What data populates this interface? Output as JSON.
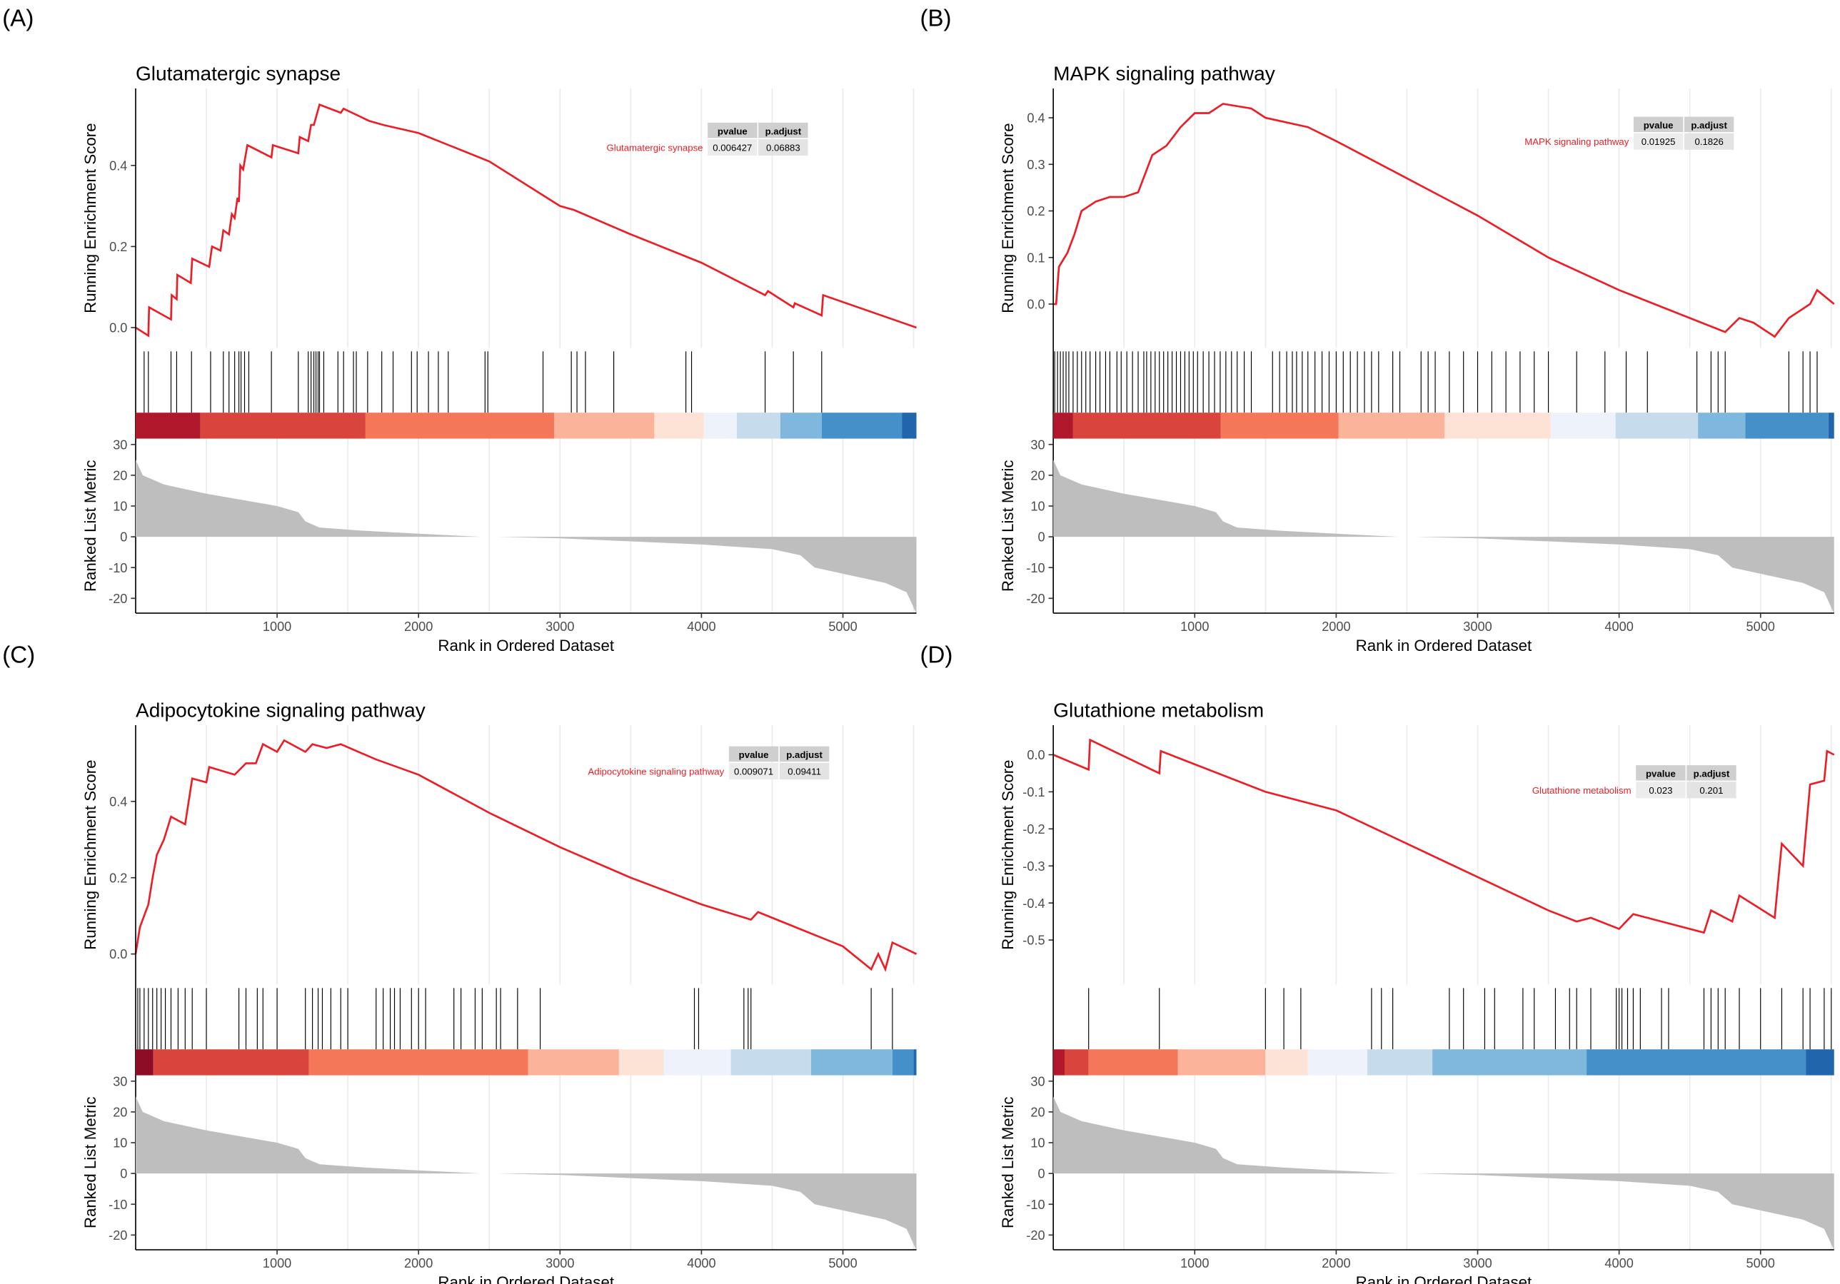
{
  "chart_data": [
    {
      "panel": "(A)",
      "type": "line",
      "title": "Glutamatergic synapse",
      "term": "Glutamatergic synapse",
      "pvalue": "0.006427",
      "p_adjust": "0.06883",
      "ylabel": "Running Enrichment Score",
      "ylim": [
        -0.05,
        0.59
      ],
      "yticks": [
        "0.0",
        "0.2",
        "0.4"
      ],
      "ytick_values": [
        0,
        0.2,
        0.4
      ],
      "es": [
        [
          0,
          0
        ],
        [
          90,
          -0.02
        ],
        [
          95,
          0.05
        ],
        [
          250,
          0.02
        ],
        [
          255,
          0.08
        ],
        [
          290,
          0.07
        ],
        [
          295,
          0.13
        ],
        [
          390,
          0.11
        ],
        [
          400,
          0.17
        ],
        [
          520,
          0.15
        ],
        [
          540,
          0.2
        ],
        [
          600,
          0.19
        ],
        [
          620,
          0.24
        ],
        [
          660,
          0.23
        ],
        [
          680,
          0.28
        ],
        [
          700,
          0.27
        ],
        [
          720,
          0.32
        ],
        [
          730,
          0.31
        ],
        [
          740,
          0.4
        ],
        [
          760,
          0.39
        ],
        [
          790,
          0.45
        ],
        [
          960,
          0.42
        ],
        [
          970,
          0.45
        ],
        [
          1150,
          0.43
        ],
        [
          1160,
          0.47
        ],
        [
          1220,
          0.46
        ],
        [
          1240,
          0.5
        ],
        [
          1260,
          0.5
        ],
        [
          1300,
          0.55
        ],
        [
          1450,
          0.53
        ],
        [
          1470,
          0.54
        ],
        [
          1650,
          0.51
        ],
        [
          1750,
          0.5
        ],
        [
          2000,
          0.48
        ],
        [
          2500,
          0.41
        ],
        [
          3000,
          0.3
        ],
        [
          3100,
          0.29
        ],
        [
          3500,
          0.23
        ],
        [
          4000,
          0.16
        ],
        [
          4450,
          0.08
        ],
        [
          4470,
          0.09
        ],
        [
          4650,
          0.05
        ],
        [
          4660,
          0.06
        ],
        [
          4850,
          0.03
        ],
        [
          4860,
          0.08
        ],
        [
          5520,
          0.0
        ]
      ],
      "hits": [
        60,
        90,
        250,
        290,
        395,
        530,
        620,
        660,
        700,
        730,
        745,
        770,
        800,
        960,
        1150,
        1220,
        1240,
        1260,
        1275,
        1290,
        1300,
        1330,
        1430,
        1470,
        1540,
        1560,
        1640,
        1740,
        1820,
        1950,
        1990,
        2070,
        2140,
        2210,
        2470,
        2490,
        2880,
        3080,
        3120,
        3180,
        3380,
        3890,
        3930,
        4450,
        4650,
        4850
      ],
      "colorbar": [
        [
          0,
          458,
          "#b2182b"
        ],
        [
          458,
          1625,
          "#d9453c"
        ],
        [
          1625,
          2958,
          "#f4775a"
        ],
        [
          2958,
          3667,
          "#fbb49a"
        ],
        [
          3667,
          4017,
          "#fde3d6"
        ],
        [
          4017,
          4250,
          "#eef2fb"
        ],
        [
          4250,
          4558,
          "#c6dbec"
        ],
        [
          4558,
          4850,
          "#7fb7dd"
        ],
        [
          4850,
          5417,
          "#4690c9"
        ],
        [
          5417,
          5520,
          "#2166ac"
        ]
      ]
    },
    {
      "panel": "(B)",
      "type": "line",
      "title": "MAPK signaling pathway",
      "term": "MAPK signaling pathway",
      "pvalue": "0.01925",
      "p_adjust": "0.1826",
      "ylabel": "Running Enrichment Score",
      "ylim": [
        -0.094,
        0.463
      ],
      "yticks": [
        "0.0",
        "0.1",
        "0.2",
        "0.3",
        "0.4"
      ],
      "ytick_values": [
        0,
        0.1,
        0.2,
        0.3,
        0.4
      ],
      "es": [
        [
          0,
          0
        ],
        [
          20,
          0.0
        ],
        [
          40,
          0.08
        ],
        [
          100,
          0.11
        ],
        [
          150,
          0.15
        ],
        [
          200,
          0.2
        ],
        [
          300,
          0.22
        ],
        [
          400,
          0.23
        ],
        [
          500,
          0.23
        ],
        [
          600,
          0.24
        ],
        [
          650,
          0.28
        ],
        [
          700,
          0.32
        ],
        [
          800,
          0.34
        ],
        [
          900,
          0.38
        ],
        [
          1000,
          0.41
        ],
        [
          1100,
          0.41
        ],
        [
          1200,
          0.43
        ],
        [
          1400,
          0.42
        ],
        [
          1500,
          0.4
        ],
        [
          1800,
          0.38
        ],
        [
          2000,
          0.35
        ],
        [
          2500,
          0.27
        ],
        [
          3000,
          0.19
        ],
        [
          3500,
          0.1
        ],
        [
          4000,
          0.03
        ],
        [
          4500,
          -0.03
        ],
        [
          4750,
          -0.06
        ],
        [
          4850,
          -0.03
        ],
        [
          4950,
          -0.04
        ],
        [
          5100,
          -0.07
        ],
        [
          5200,
          -0.03
        ],
        [
          5350,
          0.0
        ],
        [
          5400,
          0.03
        ],
        [
          5520,
          0.0
        ]
      ],
      "hits": [
        10,
        30,
        50,
        70,
        90,
        110,
        140,
        170,
        200,
        230,
        260,
        300,
        330,
        370,
        400,
        450,
        480,
        520,
        560,
        600,
        640,
        660,
        690,
        720,
        750,
        780,
        810,
        840,
        870,
        900,
        930,
        960,
        990,
        1020,
        1060,
        1100,
        1140,
        1180,
        1220,
        1260,
        1300,
        1350,
        1400,
        1550,
        1600,
        1650,
        1690,
        1720,
        1760,
        1800,
        1850,
        1900,
        1950,
        2000,
        2050,
        2100,
        2150,
        2200,
        2250,
        2300,
        2400,
        2450,
        2600,
        2650,
        2700,
        2800,
        2900,
        3000,
        3100,
        3200,
        3300,
        3400,
        3500,
        3700,
        3900,
        4050,
        4200,
        4550,
        4650,
        4700,
        4750,
        5200,
        5300,
        5350,
        5400
      ],
      "colorbar": [
        [
          0,
          140,
          "#b2182b"
        ],
        [
          140,
          1183,
          "#d9453c"
        ],
        [
          1183,
          2017,
          "#f4775a"
        ],
        [
          2017,
          2767,
          "#fbb49a"
        ],
        [
          2767,
          3517,
          "#fde3d6"
        ],
        [
          3517,
          3975,
          "#eef2fb"
        ],
        [
          3975,
          4558,
          "#c6dbec"
        ],
        [
          4558,
          4892,
          "#7fb7dd"
        ],
        [
          4892,
          5480,
          "#4690c9"
        ],
        [
          5480,
          5520,
          "#2166ac"
        ]
      ]
    },
    {
      "panel": "(C)",
      "type": "line",
      "title": "Adipocytokine signaling pathway",
      "term": "Adipocytokine signaling pathway",
      "pvalue": "0.009071",
      "p_adjust": "0.09411",
      "ylabel": "Running Enrichment Score",
      "ylim": [
        -0.08,
        0.6
      ],
      "yticks": [
        "0.0",
        "0.2",
        "0.4"
      ],
      "ytick_values": [
        0,
        0.2,
        0.4
      ],
      "es": [
        [
          0,
          0
        ],
        [
          30,
          0.07
        ],
        [
          90,
          0.13
        ],
        [
          120,
          0.2
        ],
        [
          150,
          0.26
        ],
        [
          200,
          0.3
        ],
        [
          250,
          0.36
        ],
        [
          350,
          0.34
        ],
        [
          400,
          0.46
        ],
        [
          500,
          0.45
        ],
        [
          520,
          0.49
        ],
        [
          700,
          0.47
        ],
        [
          780,
          0.5
        ],
        [
          850,
          0.5
        ],
        [
          900,
          0.55
        ],
        [
          1000,
          0.53
        ],
        [
          1050,
          0.56
        ],
        [
          1200,
          0.53
        ],
        [
          1250,
          0.55
        ],
        [
          1350,
          0.54
        ],
        [
          1450,
          0.55
        ],
        [
          1700,
          0.51
        ],
        [
          2000,
          0.47
        ],
        [
          2500,
          0.37
        ],
        [
          3000,
          0.28
        ],
        [
          3500,
          0.2
        ],
        [
          4000,
          0.13
        ],
        [
          4350,
          0.09
        ],
        [
          4400,
          0.11
        ],
        [
          5000,
          0.02
        ],
        [
          5200,
          -0.04
        ],
        [
          5250,
          0.0
        ],
        [
          5300,
          -0.04
        ],
        [
          5350,
          0.03
        ],
        [
          5520,
          0.0
        ]
      ],
      "hits": [
        15,
        30,
        60,
        90,
        120,
        150,
        180,
        210,
        250,
        300,
        350,
        400,
        500,
        730,
        780,
        860,
        900,
        1000,
        1200,
        1250,
        1290,
        1320,
        1380,
        1450,
        1500,
        1700,
        1750,
        1800,
        1830,
        1870,
        1950,
        2000,
        2050,
        2250,
        2300,
        2400,
        2450,
        2550,
        2580,
        2700,
        2860,
        3950,
        3980,
        4300,
        4330,
        4350,
        5200,
        5350
      ],
      "colorbar": [
        [
          0,
          125,
          "#8c0d25"
        ],
        [
          125,
          1225,
          "#d9453c"
        ],
        [
          1225,
          2775,
          "#f4775a"
        ],
        [
          2775,
          3417,
          "#fbb49a"
        ],
        [
          3417,
          3733,
          "#fde3d6"
        ],
        [
          3733,
          4208,
          "#eef2fb"
        ],
        [
          4208,
          4775,
          "#c6dbec"
        ],
        [
          4775,
          5350,
          "#7fb7dd"
        ],
        [
          5350,
          5500,
          "#4690c9"
        ],
        [
          5500,
          5520,
          "#2166ac"
        ]
      ]
    },
    {
      "panel": "(D)",
      "type": "line",
      "title": "Glutathione metabolism",
      "term": "Glutathione metabolism",
      "pvalue": "0.023",
      "p_adjust": "0.201",
      "ylabel": "Running Enrichment Score",
      "ylim": [
        -0.62,
        0.08
      ],
      "yticks": [
        "0.0",
        "-0.1",
        "-0.2",
        "-0.3",
        "-0.4",
        "-0.5"
      ],
      "ytick_values": [
        0,
        -0.1,
        -0.2,
        -0.3,
        -0.4,
        -0.5
      ],
      "es": [
        [
          0,
          0
        ],
        [
          250,
          -0.04
        ],
        [
          260,
          0.04
        ],
        [
          750,
          -0.05
        ],
        [
          760,
          0.01
        ],
        [
          1500,
          -0.1
        ],
        [
          2000,
          -0.15
        ],
        [
          2500,
          -0.24
        ],
        [
          3000,
          -0.33
        ],
        [
          3500,
          -0.42
        ],
        [
          3700,
          -0.45
        ],
        [
          3800,
          -0.44
        ],
        [
          4000,
          -0.47
        ],
        [
          4100,
          -0.43
        ],
        [
          4300,
          -0.45
        ],
        [
          4600,
          -0.48
        ],
        [
          4650,
          -0.42
        ],
        [
          4800,
          -0.45
        ],
        [
          4850,
          -0.38
        ],
        [
          5100,
          -0.44
        ],
        [
          5150,
          -0.24
        ],
        [
          5300,
          -0.3
        ],
        [
          5350,
          -0.08
        ],
        [
          5450,
          -0.07
        ],
        [
          5470,
          0.01
        ],
        [
          5520,
          0.0
        ]
      ],
      "hits": [
        250,
        750,
        1500,
        1630,
        1750,
        2250,
        2320,
        2400,
        2800,
        2900,
        3050,
        3120,
        3320,
        3400,
        3550,
        3650,
        3700,
        3800,
        3980,
        4000,
        4020,
        4060,
        4100,
        4150,
        4300,
        4350,
        4600,
        4650,
        4700,
        4750,
        4850,
        5000,
        5150,
        5300,
        5350,
        5450,
        5500
      ],
      "colorbar": [
        [
          0,
          80,
          "#b2182b"
        ],
        [
          80,
          250,
          "#d9453c"
        ],
        [
          250,
          880,
          "#f4775a"
        ],
        [
          880,
          1500,
          "#fbb49a"
        ],
        [
          1500,
          1800,
          "#fde3d6"
        ],
        [
          1800,
          2220,
          "#eef2fb"
        ],
        [
          2220,
          2680,
          "#c6dbec"
        ],
        [
          2680,
          3770,
          "#7fb7dd"
        ],
        [
          3770,
          5320,
          "#4690c9"
        ],
        [
          5320,
          5520,
          "#2166ac"
        ]
      ]
    }
  ],
  "shared": {
    "xlabel": "Rank in Ordered Dataset",
    "xlim": [
      0,
      5520
    ],
    "xticks": [
      1000,
      2000,
      3000,
      4000,
      5000
    ],
    "metric_label": "Ranked List Metric",
    "metric_ylim": [
      -24.8,
      31.9
    ],
    "metric_ticks": [
      30,
      20,
      10,
      0,
      -10,
      -20
    ],
    "metric": [
      [
        0,
        25
      ],
      [
        50,
        20
      ],
      [
        200,
        17
      ],
      [
        500,
        14
      ],
      [
        1000,
        10
      ],
      [
        1150,
        8
      ],
      [
        1200,
        5
      ],
      [
        1300,
        3
      ],
      [
        1600,
        2
      ],
      [
        2000,
        1
      ],
      [
        2440,
        0
      ],
      [
        2560,
        0
      ],
      [
        3000,
        -0.5
      ],
      [
        3500,
        -1.5
      ],
      [
        4000,
        -2.5
      ],
      [
        4500,
        -4
      ],
      [
        4700,
        -6
      ],
      [
        4800,
        -10
      ],
      [
        5000,
        -12
      ],
      [
        5300,
        -15
      ],
      [
        5450,
        -18
      ],
      [
        5520,
        -25
      ]
    ],
    "table_headers": [
      "pvalue",
      "p.adjust"
    ],
    "es_color": "#ee1c25",
    "metric_color": "#bebebe"
  }
}
